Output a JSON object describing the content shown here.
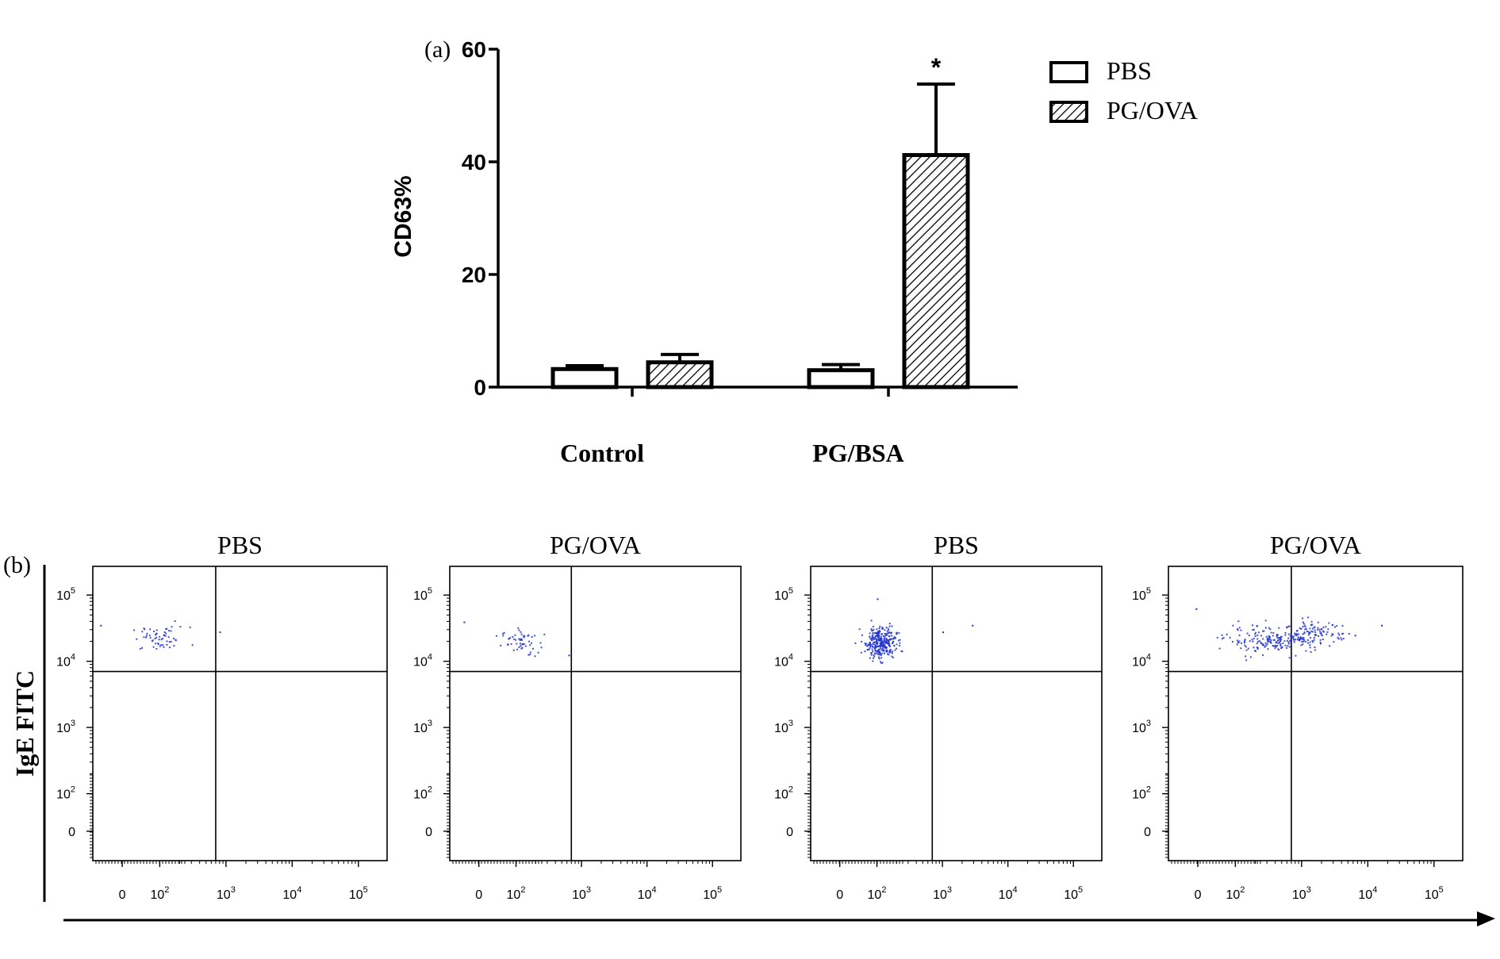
{
  "chart_data": [
    {
      "panel_label": "(a)",
      "type": "bar",
      "title": "",
      "xlabel": "",
      "ylabel": "CD63%",
      "ylim": [
        0,
        60
      ],
      "yticks": [
        "0",
        "20",
        "40",
        "60"
      ],
      "categories": [
        "Control",
        "PG/BSA"
      ],
      "series": [
        {
          "name": "PBS",
          "fill": "white",
          "values": [
            3.2,
            3.0
          ],
          "errors": [
            0.6,
            1.0
          ]
        },
        {
          "name": "PG/OVA",
          "fill": "hatched",
          "values": [
            4.4,
            41.2
          ],
          "errors": [
            1.4,
            12.6
          ]
        }
      ],
      "annotations": [
        {
          "text": "*",
          "category": "PG/BSA",
          "series": "PG/OVA"
        }
      ],
      "legend": {
        "position": "top-right",
        "entries": [
          "PBS",
          "PG/OVA"
        ]
      }
    },
    {
      "panel_label": "(b)",
      "type": "scatter",
      "ylabel": "IgE FITC",
      "x_ticks": [
        {
          "base": "0",
          "exp": ""
        },
        {
          "base": "10",
          "exp": "2"
        },
        {
          "base": "10",
          "exp": "3"
        },
        {
          "base": "10",
          "exp": "4"
        },
        {
          "base": "10",
          "exp": "5"
        }
      ],
      "y_ticks": [
        {
          "base": "0",
          "exp": ""
        },
        {
          "base": "10",
          "exp": "2"
        },
        {
          "base": "10",
          "exp": "3"
        },
        {
          "base": "10",
          "exp": "4"
        },
        {
          "base": "10",
          "exp": "5"
        }
      ],
      "gate": {
        "x": 700,
        "y": 7000
      },
      "point_color": "#2233cc",
      "plots": [
        {
          "title": "PBS",
          "clusters": [
            {
              "x_log_center": 2.0,
              "y_log_center": 4.35,
              "x_spread": 0.22,
              "y_spread": 0.09,
              "n": 60
            }
          ],
          "outliers": [
            [
              2.9,
              4.45
            ],
            [
              1.1,
              4.55
            ]
          ]
        },
        {
          "title": "PG/OVA",
          "clusters": [
            {
              "x_log_center": 2.05,
              "y_log_center": 4.3,
              "x_spread": 0.14,
              "y_spread": 0.1,
              "n": 55
            }
          ],
          "outliers": [
            [
              1.2,
              4.6
            ],
            [
              2.8,
              4.1
            ]
          ]
        },
        {
          "title": "PBS",
          "clusters": [
            {
              "x_log_center": 2.05,
              "y_log_center": 4.3,
              "x_spread": 0.12,
              "y_spread": 0.12,
              "n": 300
            }
          ],
          "outliers": [
            [
              3.0,
              4.45
            ],
            [
              3.45,
              4.55
            ],
            [
              2.0,
              4.95
            ]
          ]
        },
        {
          "title": "PG/OVA",
          "clusters": [
            {
              "x_log_center": 2.6,
              "y_log_center": 4.33,
              "x_spread": 0.38,
              "y_spread": 0.1,
              "n": 220
            },
            {
              "x_log_center": 3.2,
              "y_log_center": 4.45,
              "x_spread": 0.2,
              "y_spread": 0.08,
              "n": 70
            }
          ],
          "outliers": [
            [
              4.2,
              4.55
            ],
            [
              1.4,
              4.8
            ],
            [
              3.8,
              4.4
            ]
          ]
        }
      ]
    }
  ]
}
